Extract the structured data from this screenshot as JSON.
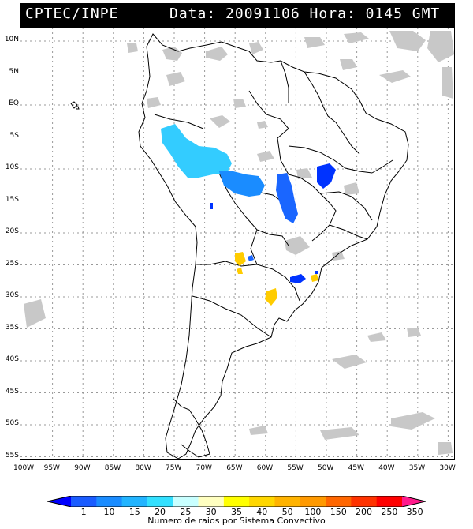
{
  "header": {
    "source": "CPTEC/INPE",
    "date_time": "Data: 20091106 Hora: 0145 GMT"
  },
  "map": {
    "lat_labels": [
      "10N",
      "5N",
      "EQ",
      "5S",
      "10S",
      "15S",
      "20S",
      "25S",
      "30S",
      "35S",
      "40S",
      "45S",
      "50S",
      "55S"
    ],
    "lon_labels": [
      "100W",
      "95W",
      "90W",
      "85W",
      "80W",
      "75W",
      "70W",
      "65W",
      "60W",
      "55W",
      "50W",
      "45W",
      "40W",
      "35W",
      "30W"
    ],
    "land_color": "#ffffff",
    "cloud_color": "#c8c8c8",
    "border_color": "#000000",
    "convective_systems": [
      {
        "region": "western Amazon",
        "class": "20-25",
        "color": "#33ccff"
      },
      {
        "region": "central Amazon",
        "class": "15-20",
        "color": "#1a8cff"
      },
      {
        "region": "Goias / Tocantins",
        "class": "10-15",
        "color": "#1a66ff"
      },
      {
        "region": "Bahia",
        "class": "1-10",
        "color": "#0033ff"
      },
      {
        "region": "Paraguay",
        "class": "35-40",
        "color": "#ffcc00"
      },
      {
        "region": "Rio Grande do Sul",
        "class": "1-10",
        "color": "#0033ff"
      },
      {
        "region": "Uruguay border",
        "class": "35-40",
        "color": "#ffcc00"
      }
    ]
  },
  "colorbar": {
    "labels": [
      "1",
      "10",
      "15",
      "20",
      "25",
      "30",
      "35",
      "40",
      "50",
      "100",
      "150",
      "200",
      "250",
      "350"
    ],
    "colors": [
      "#0000ff",
      "#1a5cff",
      "#1a8cff",
      "#22b4ff",
      "#33e0ff",
      "#c8ffff",
      "#ffffc0",
      "#ffff00",
      "#ffd700",
      "#ffb300",
      "#ff9900",
      "#ff6600",
      "#ff3300",
      "#ff0000",
      "#ff1a8c"
    ],
    "caption": "Numero de raios por Sistema Convectivo"
  }
}
